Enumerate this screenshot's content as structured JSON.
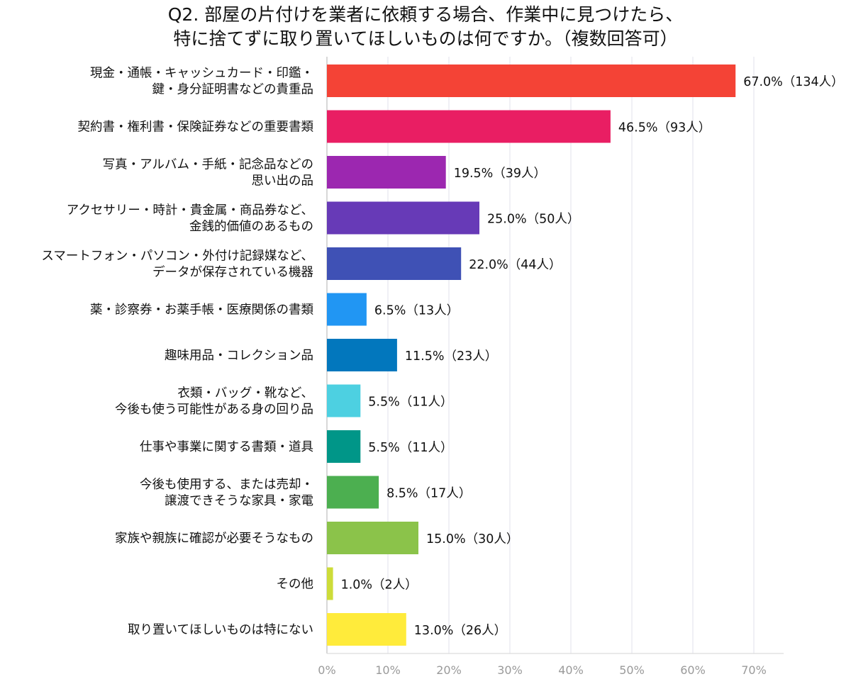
{
  "chart_data": {
    "type": "bar",
    "orientation": "horizontal",
    "title": "Q2. 部屋の片付けを業者に依頼する場合、作業中に見つけたら、",
    "subtitle": "特に捨てずに取り置いてほしいものは何ですか。（複数回答可）",
    "xlim": [
      0,
      70
    ],
    "x_ticks": [
      "0%",
      "10%",
      "20%",
      "30%",
      "40%",
      "50%",
      "60%",
      "70%"
    ],
    "grid": true,
    "legend": "none",
    "bars": [
      {
        "label_lines": [
          "現金・通帳・キャッシュカード・印鑑・",
          "鍵・身分証明書などの貴重品"
        ],
        "value": 67.0,
        "count": 134,
        "value_label": "67.0%（134人）",
        "color": "#f44336"
      },
      {
        "label_lines": [
          "契約書・権利書・保険証券などの重要書類"
        ],
        "value": 46.5,
        "count": 93,
        "value_label": "46.5%（93人）",
        "color": "#e91e63"
      },
      {
        "label_lines": [
          "写真・アルバム・手紙・記念品などの",
          "思い出の品"
        ],
        "value": 19.5,
        "count": 39,
        "value_label": "19.5%（39人）",
        "color": "#9c27b0"
      },
      {
        "label_lines": [
          "アクセサリー・時計・貴金属・商品券など、",
          "金銭的価値のあるもの"
        ],
        "value": 25.0,
        "count": 50,
        "value_label": "25.0%（50人）",
        "color": "#673ab7"
      },
      {
        "label_lines": [
          "スマートフォン・パソコン・外付け記録媒など、",
          "データが保存されている機器"
        ],
        "value": 22.0,
        "count": 44,
        "value_label": "22.0%（44人）",
        "color": "#3f51b5"
      },
      {
        "label_lines": [
          "薬・診察券・お薬手帳・医療関係の書類"
        ],
        "value": 6.5,
        "count": 13,
        "value_label": "6.5%（13人）",
        "color": "#2196f3"
      },
      {
        "label_lines": [
          "趣味用品・コレクション品"
        ],
        "value": 11.5,
        "count": 23,
        "value_label": "11.5%（23人）",
        "color": "#0277bd"
      },
      {
        "label_lines": [
          "衣類・バッグ・靴など、",
          "今後も使う可能性がある身の回り品"
        ],
        "value": 5.5,
        "count": 11,
        "value_label": "5.5%（11人）",
        "color": "#4dd0e1"
      },
      {
        "label_lines": [
          "仕事や事業に関する書類・道具"
        ],
        "value": 5.5,
        "count": 11,
        "value_label": "5.5%（11人）",
        "color": "#009688"
      },
      {
        "label_lines": [
          "今後も使用する、または売却・",
          "譲渡できそうな家具・家電"
        ],
        "value": 8.5,
        "count": 17,
        "value_label": "8.5%（17人）",
        "color": "#4caf50"
      },
      {
        "label_lines": [
          "家族や親族に確認が必要そうなもの"
        ],
        "value": 15.0,
        "count": 30,
        "value_label": "15.0%（30人）",
        "color": "#8bc34a"
      },
      {
        "label_lines": [
          "その他"
        ],
        "value": 1.0,
        "count": 2,
        "value_label": "1.0%（2人）",
        "color": "#cddc39"
      },
      {
        "label_lines": [
          "取り置いてほしいものは特にない"
        ],
        "value": 13.0,
        "count": 26,
        "value_label": "13.0%（26人）",
        "color": "#ffeb3b"
      }
    ]
  }
}
